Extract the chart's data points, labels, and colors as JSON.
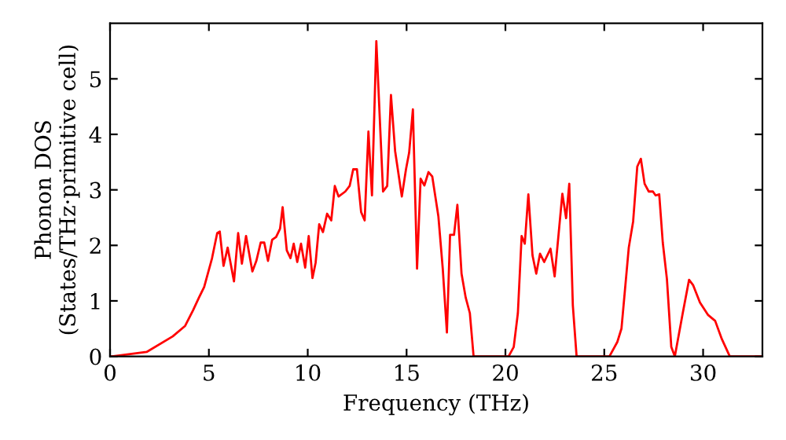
{
  "chart_data": {
    "type": "line",
    "xlabel": "Frequency (THz)",
    "ylabel": "Phonon DOS\n(States/THz·primitive cell)",
    "xlim": [
      0,
      33
    ],
    "ylim": [
      0,
      6
    ],
    "xticks": [
      0,
      5,
      10,
      15,
      20,
      25,
      30
    ],
    "yticks": [
      0,
      1,
      2,
      3,
      4,
      5
    ],
    "grid": false,
    "legend": false,
    "marker": "none",
    "line_style": "solid",
    "series": [
      {
        "color": "#ff0000",
        "x": [
          0.1,
          1.85,
          3.17,
          3.8,
          4.2,
          4.5,
          4.76,
          5.16,
          5.42,
          5.55,
          5.74,
          5.95,
          6.27,
          6.48,
          6.67,
          6.88,
          7.2,
          7.4,
          7.62,
          7.8,
          7.99,
          8.2,
          8.4,
          8.6,
          8.73,
          8.94,
          9.13,
          9.29,
          9.47,
          9.66,
          9.87,
          10.05,
          10.24,
          10.4,
          10.58,
          10.77,
          10.98,
          11.19,
          11.37,
          11.56,
          11.9,
          12.12,
          12.3,
          12.49,
          12.7,
          12.88,
          13.07,
          13.25,
          13.47,
          13.81,
          14.02,
          14.21,
          14.42,
          14.76,
          14.97,
          15.13,
          15.32,
          15.53,
          15.71,
          15.9,
          16.11,
          16.3,
          16.61,
          16.83,
          17.04,
          17.2,
          17.4,
          17.57,
          17.78,
          17.99,
          18.2,
          18.39,
          20.16,
          20.42,
          20.63,
          20.82,
          20.98,
          21.16,
          21.37,
          21.56,
          21.75,
          21.96,
          22.28,
          22.49,
          22.88,
          23.07,
          23.23,
          23.41,
          23.6,
          25.26,
          25.66,
          25.87,
          26.24,
          26.46,
          26.67,
          26.85,
          27.04,
          27.25,
          27.46,
          27.6,
          27.78,
          27.96,
          28.17,
          28.39,
          28.57,
          28.97,
          29.29,
          29.5,
          29.84,
          30.24,
          30.61,
          30.95,
          31.35,
          33
        ],
        "values": [
          0,
          0.08,
          0.36,
          0.55,
          0.83,
          1.06,
          1.25,
          1.77,
          2.22,
          2.25,
          1.63,
          1.96,
          1.35,
          2.22,
          1.67,
          2.17,
          1.53,
          1.72,
          2.05,
          2.05,
          1.72,
          2.1,
          2.15,
          2.3,
          2.69,
          1.91,
          1.77,
          2.03,
          1.7,
          2.03,
          1.6,
          2.17,
          1.41,
          1.69,
          2.38,
          2.24,
          2.57,
          2.45,
          3.07,
          2.88,
          2.97,
          3.07,
          3.37,
          3.37,
          2.6,
          2.45,
          4.05,
          2.9,
          5.68,
          2.97,
          3.07,
          4.71,
          3.7,
          2.88,
          3.37,
          3.67,
          4.45,
          1.58,
          3.2,
          3.08,
          3.32,
          3.24,
          2.52,
          1.58,
          0.43,
          2.19,
          2.19,
          2.73,
          1.49,
          1.06,
          0.78,
          0,
          0,
          0.17,
          0.78,
          2.17,
          2.03,
          2.92,
          1.82,
          1.49,
          1.85,
          1.7,
          1.94,
          1.44,
          2.93,
          2.49,
          3.11,
          0.92,
          0,
          0,
          0.26,
          0.5,
          1.96,
          2.43,
          3.42,
          3.56,
          3.11,
          2.97,
          2.97,
          2.9,
          2.92,
          2.05,
          1.39,
          0.17,
          0,
          0.78,
          1.38,
          1.28,
          0.97,
          0.75,
          0.64,
          0.31,
          0,
          0
        ]
      }
    ]
  }
}
